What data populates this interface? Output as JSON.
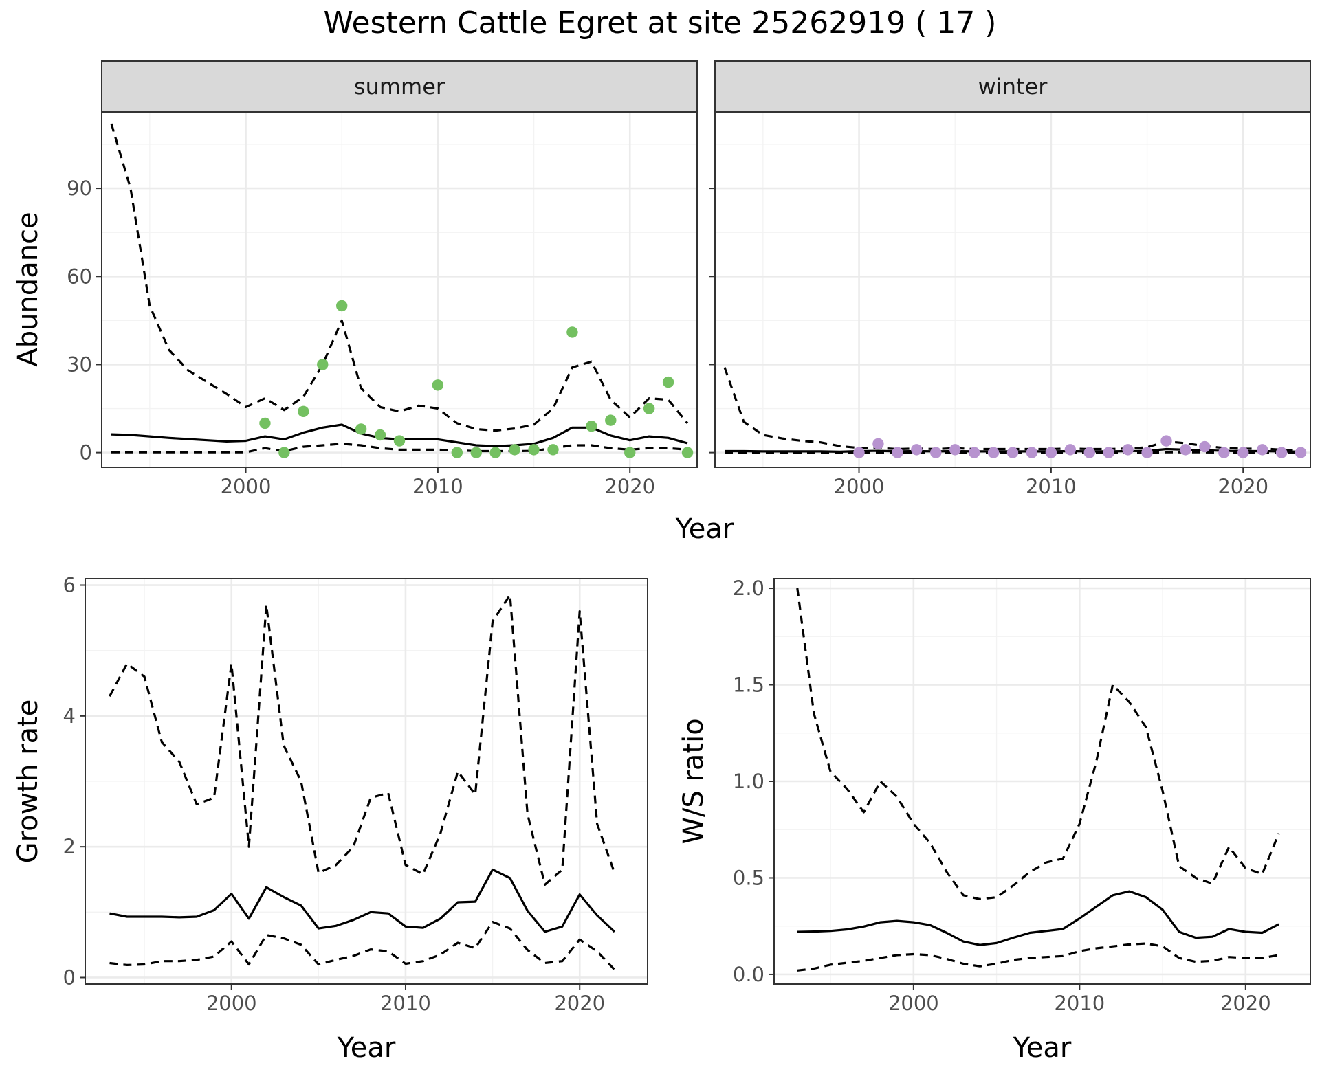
{
  "title": "Western Cattle Egret at site 25262919 ( 17 )",
  "colors": {
    "summer_points": "#74c061",
    "winter_points": "#b793cf"
  },
  "chart_data": [
    {
      "id": "summer",
      "type": "line",
      "facet": "summer",
      "xlabel": "Year",
      "ylabel": "Abundance",
      "xlim": [
        1992.5,
        2023.5
      ],
      "ylim": [
        -5,
        116
      ],
      "xticks": [
        2000,
        2010,
        2020
      ],
      "yticks": [
        0,
        30,
        60,
        90
      ],
      "grid": true,
      "x": [
        1993,
        1994,
        1995,
        1996,
        1997,
        1998,
        1999,
        2000,
        2001,
        2002,
        2003,
        2004,
        2005,
        2006,
        2007,
        2008,
        2009,
        2010,
        2011,
        2012,
        2013,
        2014,
        2015,
        2016,
        2017,
        2018,
        2019,
        2020,
        2021,
        2022,
        2023
      ],
      "series": [
        {
          "role": "mean",
          "style": "solid",
          "values": [
            6.2,
            6,
            5.5,
            5,
            4.6,
            4.2,
            3.8,
            4,
            5.5,
            4.5,
            6.8,
            8.5,
            9.5,
            6.5,
            5,
            4.5,
            4.5,
            4.5,
            3.5,
            2.5,
            2.2,
            2.5,
            3,
            5,
            8.5,
            8.5,
            5.8,
            4.2,
            5.5,
            5,
            3.2
          ]
        },
        {
          "role": "upper",
          "style": "dashed",
          "values": [
            112,
            90,
            50,
            35,
            28,
            24,
            20,
            15.5,
            18.5,
            14.5,
            19,
            30,
            45,
            22,
            15.5,
            14,
            16,
            15,
            10,
            8,
            7.5,
            8.2,
            9.5,
            15,
            29,
            31,
            18,
            12,
            18.5,
            18,
            10
          ]
        },
        {
          "role": "lower",
          "style": "dashed",
          "values": [
            0.1,
            0.1,
            0.1,
            0.1,
            0.1,
            0.1,
            0.1,
            0.1,
            1.5,
            0.5,
            2,
            2.5,
            3,
            2.5,
            1.5,
            1,
            1,
            1,
            0.8,
            0.5,
            0.5,
            0.5,
            0.6,
            1.5,
            2.5,
            2.5,
            1.5,
            1,
            1.5,
            1.5,
            1
          ]
        }
      ],
      "points": {
        "x": [
          2001,
          2002,
          2003,
          2004,
          2005,
          2006,
          2007,
          2008,
          2010,
          2011,
          2012,
          2013,
          2014,
          2015,
          2016,
          2017,
          2018,
          2019,
          2020,
          2021,
          2022,
          2023
        ],
        "y": [
          10,
          0,
          14,
          30,
          50,
          8,
          6,
          4,
          23,
          0,
          0,
          0,
          1,
          1,
          1,
          41,
          9,
          11,
          0,
          15,
          24,
          0
        ]
      }
    },
    {
      "id": "winter",
      "type": "line",
      "facet": "winter",
      "xlabel": "Year",
      "ylabel": "Abundance",
      "xlim": [
        1992.5,
        2023.5
      ],
      "ylim": [
        -5,
        116
      ],
      "xticks": [
        2000,
        2010,
        2020
      ],
      "yticks": [
        0,
        30,
        60,
        90
      ],
      "grid": true,
      "x": [
        1993,
        1994,
        1995,
        1996,
        1997,
        1998,
        1999,
        2000,
        2001,
        2002,
        2003,
        2004,
        2005,
        2006,
        2007,
        2008,
        2009,
        2010,
        2011,
        2012,
        2013,
        2014,
        2015,
        2016,
        2017,
        2018,
        2019,
        2020,
        2021,
        2022,
        2023
      ],
      "series": [
        {
          "role": "mean",
          "style": "solid",
          "values": [
            0.5,
            0.5,
            0.4,
            0.4,
            0.4,
            0.4,
            0.3,
            0.5,
            0.6,
            0.4,
            0.5,
            0.4,
            0.5,
            0.4,
            0.4,
            0.4,
            0.4,
            0.4,
            0.5,
            0.4,
            0.4,
            0.5,
            0.6,
            1.2,
            1,
            0.8,
            0.6,
            0.5,
            0.5,
            0.4,
            0.3
          ]
        },
        {
          "role": "upper",
          "style": "dashed",
          "values": [
            29,
            10.5,
            6,
            4.8,
            4,
            3.5,
            2.2,
            1.6,
            1.6,
            1.2,
            1.4,
            1.2,
            1.5,
            1.2,
            1.2,
            1.2,
            1.2,
            1.2,
            1.4,
            1.2,
            1.2,
            1.4,
            1.8,
            3.8,
            3.2,
            2.2,
            1.6,
            1.3,
            1.4,
            1,
            0.6
          ]
        },
        {
          "role": "lower",
          "style": "dashed",
          "values": [
            0,
            0,
            0,
            0,
            0,
            0,
            0,
            0,
            0,
            0,
            0,
            0,
            0,
            0,
            0,
            0,
            0,
            0,
            0,
            0,
            0,
            0,
            0,
            0.1,
            0.1,
            0.1,
            0,
            0,
            0,
            0,
            0
          ]
        }
      ],
      "points": {
        "x": [
          2000,
          2001,
          2002,
          2003,
          2004,
          2005,
          2006,
          2007,
          2008,
          2009,
          2010,
          2011,
          2012,
          2013,
          2014,
          2015,
          2016,
          2017,
          2018,
          2019,
          2020,
          2021,
          2022,
          2023
        ],
        "y": [
          0,
          3,
          0,
          1,
          0,
          1,
          0,
          0,
          0,
          0,
          0,
          1,
          0,
          0,
          1,
          0,
          4,
          1,
          2,
          0,
          0,
          1,
          0,
          0
        ]
      }
    },
    {
      "id": "growth",
      "type": "line",
      "xlabel": "Year",
      "ylabel": "Growth rate",
      "xlim": [
        1991.6,
        2023.9
      ],
      "ylim": [
        -0.1,
        6.1
      ],
      "xticks": [
        2000,
        2010,
        2020
      ],
      "yticks": [
        0,
        2,
        4,
        6
      ],
      "grid": true,
      "x": [
        1993,
        1994,
        1995,
        1996,
        1997,
        1998,
        1999,
        2000,
        2001,
        2002,
        2003,
        2004,
        2005,
        2006,
        2007,
        2008,
        2009,
        2010,
        2011,
        2012,
        2013,
        2014,
        2015,
        2016,
        2017,
        2018,
        2019,
        2020,
        2021,
        2022
      ],
      "series": [
        {
          "role": "mean",
          "style": "solid",
          "values": [
            0.98,
            0.93,
            0.93,
            0.93,
            0.92,
            0.93,
            1.03,
            1.28,
            0.9,
            1.38,
            1.23,
            1.1,
            0.75,
            0.79,
            0.88,
            1.0,
            0.98,
            0.78,
            0.76,
            0.9,
            1.15,
            1.16,
            1.65,
            1.52,
            1.02,
            0.7,
            0.78,
            1.27,
            0.95,
            0.7
          ]
        },
        {
          "role": "upper",
          "style": "dashed",
          "values": [
            4.3,
            4.8,
            4.6,
            3.6,
            3.3,
            2.65,
            2.75,
            4.8,
            2.0,
            5.7,
            3.55,
            3.0,
            1.6,
            1.72,
            2.0,
            2.75,
            2.82,
            1.72,
            1.58,
            2.2,
            3.15,
            2.8,
            5.45,
            5.85,
            2.5,
            1.42,
            1.65,
            5.6,
            2.35,
            1.6
          ]
        },
        {
          "role": "lower",
          "style": "dashed",
          "values": [
            0.22,
            0.19,
            0.2,
            0.25,
            0.25,
            0.27,
            0.32,
            0.55,
            0.2,
            0.65,
            0.6,
            0.5,
            0.2,
            0.27,
            0.33,
            0.43,
            0.4,
            0.21,
            0.25,
            0.35,
            0.53,
            0.45,
            0.85,
            0.75,
            0.42,
            0.22,
            0.25,
            0.58,
            0.4,
            0.12
          ]
        }
      ]
    },
    {
      "id": "ratio",
      "type": "line",
      "xlabel": "Year",
      "ylabel": "W/S ratio",
      "xlim": [
        1991.6,
        2023.9
      ],
      "ylim": [
        -0.05,
        2.05
      ],
      "xticks": [
        2000,
        2010,
        2020
      ],
      "yticks": [
        0.0,
        0.5,
        1.0,
        1.5,
        2.0
      ],
      "ytick_labels": [
        "0.0",
        "0.5",
        "1.0",
        "1.5",
        "2.0"
      ],
      "grid": true,
      "x": [
        1993,
        1994,
        1995,
        1996,
        1997,
        1998,
        1999,
        2000,
        2001,
        2002,
        2003,
        2004,
        2005,
        2006,
        2007,
        2008,
        2009,
        2010,
        2011,
        2012,
        2013,
        2014,
        2015,
        2016,
        2017,
        2018,
        2019,
        2020,
        2021,
        2022
      ],
      "series": [
        {
          "role": "mean",
          "style": "solid",
          "values": [
            0.22,
            0.222,
            0.225,
            0.233,
            0.248,
            0.27,
            0.277,
            0.27,
            0.255,
            0.215,
            0.17,
            0.152,
            0.162,
            0.19,
            0.215,
            0.225,
            0.235,
            0.29,
            0.35,
            0.41,
            0.43,
            0.4,
            0.335,
            0.22,
            0.19,
            0.195,
            0.235,
            0.22,
            0.215,
            0.26
          ]
        },
        {
          "role": "upper",
          "style": "dashed",
          "values": [
            2.0,
            1.35,
            1.05,
            0.96,
            0.84,
            1.0,
            0.92,
            0.78,
            0.68,
            0.53,
            0.41,
            0.39,
            0.4,
            0.46,
            0.53,
            0.58,
            0.6,
            0.78,
            1.1,
            1.5,
            1.41,
            1.28,
            0.95,
            0.56,
            0.5,
            0.47,
            0.66,
            0.55,
            0.52,
            0.73
          ]
        },
        {
          "role": "lower",
          "style": "dashed",
          "values": [
            0.02,
            0.03,
            0.05,
            0.06,
            0.07,
            0.085,
            0.1,
            0.105,
            0.1,
            0.08,
            0.055,
            0.042,
            0.055,
            0.075,
            0.085,
            0.09,
            0.095,
            0.12,
            0.135,
            0.145,
            0.155,
            0.16,
            0.145,
            0.085,
            0.065,
            0.07,
            0.09,
            0.085,
            0.085,
            0.1
          ]
        }
      ]
    }
  ]
}
